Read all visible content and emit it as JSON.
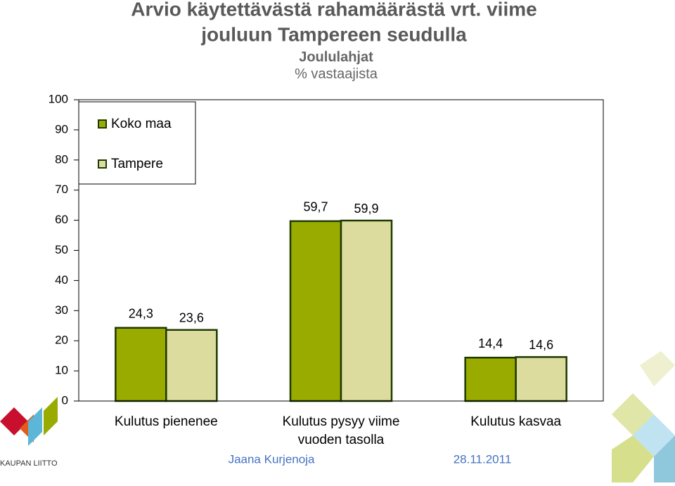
{
  "chart_data": {
    "type": "bar",
    "title": [
      "Arvio käytettävästä rahamäärästä vrt. viime",
      "jouluun Tampereen seudulla"
    ],
    "subtitle": [
      "Joululahjat",
      "% vastaajista"
    ],
    "categories": [
      [
        "Kulutus pienenee"
      ],
      [
        "Kulutus pysyy viime",
        "vuoden tasolla"
      ],
      [
        "Kulutus kasvaa"
      ]
    ],
    "series": [
      {
        "name": "Koko maa",
        "color": "#9aab00",
        "values": [
          24.3,
          59.7,
          14.4
        ],
        "value_labels": [
          "24,3",
          "59,7",
          "14,4"
        ]
      },
      {
        "name": "Tampere",
        "color": "#dddc9f",
        "values": [
          23.6,
          59.9,
          14.6
        ],
        "value_labels": [
          "23,6",
          "59,9",
          "14,6"
        ]
      }
    ],
    "ylim": [
      0,
      100
    ],
    "yticks": [
      0,
      10,
      20,
      30,
      40,
      50,
      60,
      70,
      80,
      90,
      100
    ],
    "legend": "top-left",
    "footer": {
      "author": "Jaana Kurjenoja",
      "date": "28.11.2011",
      "logo": "KAUPAN LIITTO"
    }
  }
}
